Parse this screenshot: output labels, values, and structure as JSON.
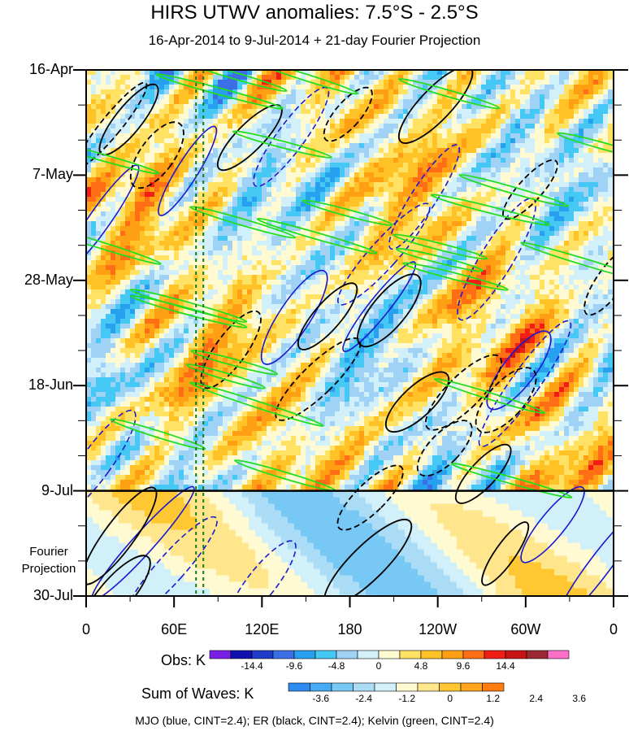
{
  "title": "HIRS UTWV anomalies: 7.5°S - 2.5°S",
  "subtitle": "16-Apr-2014 to 9-Jul-2014 + 21-day Fourier Projection",
  "footer": "MJO (blue, CINT=2.4); ER (black, CINT=2.4); Kelvin (green, CINT=2.4)",
  "projection_label": [
    "Fourier",
    "Projection"
  ],
  "chart_data": {
    "type": "heatmap",
    "title": "HIRS UTWV anomalies: 7.5°S - 2.5°S",
    "subtitle": "16-Apr-2014 to 9-Jul-2014 + 21-day Fourier Projection",
    "x_ticks": [
      "0",
      "60E",
      "120E",
      "180",
      "120W",
      "60W",
      "0"
    ],
    "x_tick_lon": [
      0,
      60,
      120,
      180,
      240,
      300,
      360
    ],
    "y_ticks": [
      "16-Apr",
      "7-May",
      "28-May",
      "18-Jun",
      "9-Jul",
      "30-Jul"
    ],
    "y_tick_days": [
      0,
      21,
      42,
      63,
      84,
      105
    ],
    "obs_end_day": 84,
    "total_days": 105,
    "obs_colorbar": {
      "label": "Obs: K",
      "tick_labels": [
        "-14.4",
        "-9.6",
        "-4.8",
        "0",
        "4.8",
        "9.6",
        "14.4"
      ],
      "colors": [
        "#7a1fe6",
        "#1010b0",
        "#1e3cc8",
        "#3c6ee6",
        "#28a0f0",
        "#46c8f5",
        "#a0d2f5",
        "#d2f0fa",
        "#fffad2",
        "#ffe164",
        "#ffc328",
        "#ffa014",
        "#ff6e14",
        "#f01e14",
        "#c81414",
        "#9b2832",
        "#ff6ec8"
      ]
    },
    "waves_colorbar": {
      "label": "Sum of Waves: K",
      "tick_labels": [
        "-3.6",
        "-2.4",
        "-1.2",
        "0",
        "1.2",
        "2.4",
        "3.6"
      ],
      "colors": [
        "#2d8cf0",
        "#46aaf5",
        "#78c8f5",
        "#aadcf5",
        "#d2f0fa",
        "#fffad2",
        "#ffe68c",
        "#ffc832",
        "#ffa51e",
        "#ff7d0f"
      ]
    },
    "markers": {
      "dashed_lines_lon": [
        75,
        80
      ]
    }
  }
}
